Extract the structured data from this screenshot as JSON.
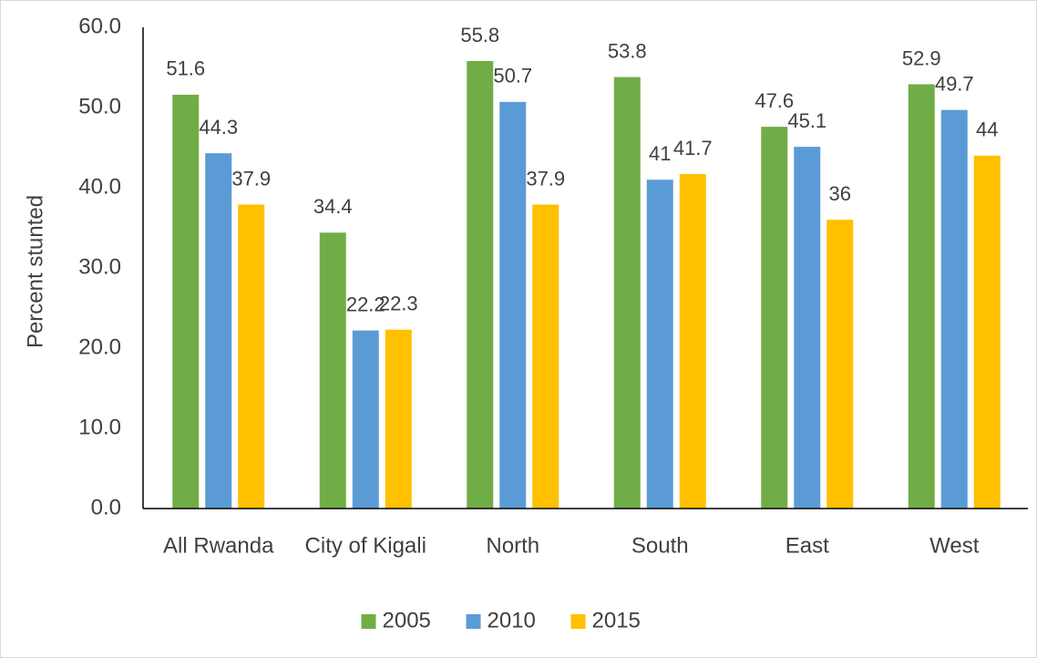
{
  "chart_data": {
    "type": "bar",
    "y_label": "Percent stunted",
    "categories": [
      "All Rwanda",
      "City of Kigali",
      "North",
      "South",
      "East",
      "West"
    ],
    "series": [
      {
        "name": "2005",
        "color": "#70ad47",
        "values": [
          51.6,
          34.4,
          55.8,
          53.8,
          47.6,
          52.9
        ]
      },
      {
        "name": "2010",
        "color": "#5b9bd5",
        "values": [
          44.3,
          22.2,
          50.7,
          41,
          45.1,
          49.7
        ]
      },
      {
        "name": "2015",
        "color": "#ffc000",
        "values": [
          37.9,
          22.3,
          37.9,
          41.7,
          36,
          44
        ]
      }
    ],
    "ylim": [
      0,
      60
    ],
    "yticks": [
      {
        "value": 0,
        "label": "0.0"
      },
      {
        "value": 10,
        "label": "10.0"
      },
      {
        "value": 20,
        "label": "20.0"
      },
      {
        "value": 30,
        "label": "30.0"
      },
      {
        "value": 40,
        "label": "40.0"
      },
      {
        "value": 50,
        "label": "50.0"
      },
      {
        "value": 60,
        "label": "60.0"
      }
    ],
    "grid": false,
    "legend": "bottom"
  }
}
